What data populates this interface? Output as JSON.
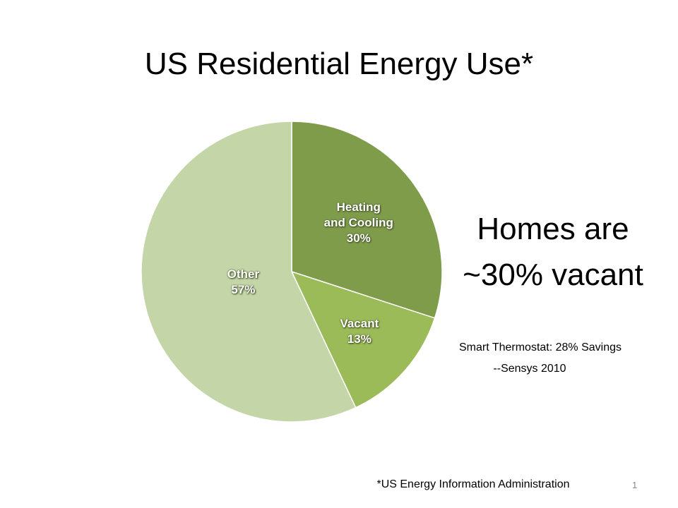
{
  "chart_data": {
    "type": "pie",
    "title": "US Residential Energy Use*",
    "categories": [
      "Heating\nand Cooling",
      "Vacant",
      "Other"
    ],
    "values": [
      30,
      13,
      57
    ],
    "value_labels": [
      "30%",
      "13%",
      "57%"
    ],
    "colors": [
      "#7f9c4b",
      "#9bbb59",
      "#c4d5a8"
    ],
    "annotation": "Homes are\n~30% vacant",
    "note": "Smart Thermostat: 28% Savings",
    "note_source": "--Sensys 2010",
    "footnote": "*US Energy Information Administration",
    "page_number": "1"
  }
}
